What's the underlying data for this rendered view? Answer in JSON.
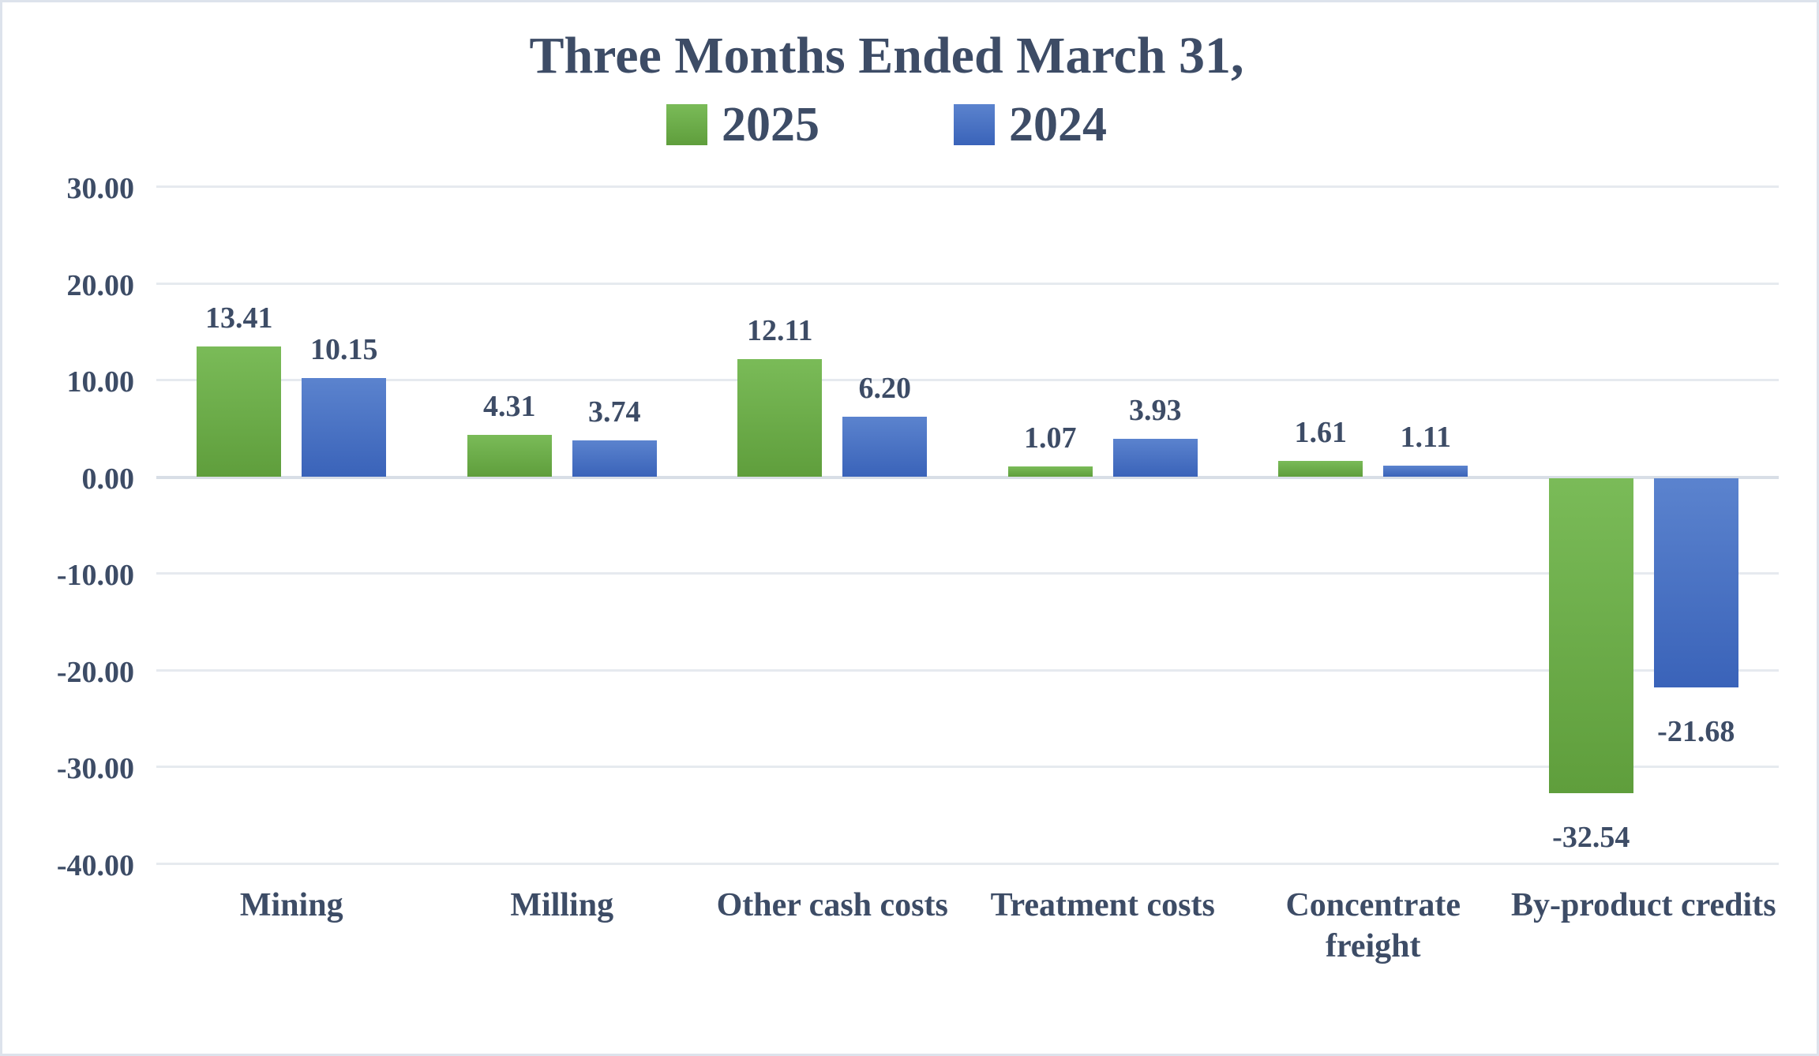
{
  "chart_data": {
    "type": "bar",
    "title": "Three Months Ended March 31,",
    "categories": [
      "Mining",
      "Milling",
      "Other cash costs",
      "Treatment costs",
      "Concentrate freight",
      "By-product credits"
    ],
    "series": [
      {
        "name": "2025",
        "values": [
          13.41,
          4.31,
          12.11,
          1.07,
          1.61,
          -32.54
        ],
        "labels": [
          "13.41",
          "4.31",
          "12.11",
          "1.07",
          "1.61",
          "-32.54"
        ],
        "color": "#6FAD47",
        "color_top": "#7ABB58",
        "color_bottom": "#5F9E3C"
      },
      {
        "name": "2024",
        "values": [
          10.15,
          3.74,
          6.2,
          3.93,
          1.11,
          -21.68
        ],
        "labels": [
          "10.15",
          "3.74",
          "6.20",
          "3.93",
          "1.11",
          "-21.68"
        ],
        "color": "#4472C4",
        "color_top": "#5B83CE",
        "color_bottom": "#3A63B9"
      }
    ],
    "ylim": [
      -40,
      30
    ],
    "ytick_step": 10,
    "yticks": [
      "30.00",
      "20.00",
      "10.00",
      "0.00",
      "-10.00",
      "-20.00",
      "-30.00",
      "-40.00"
    ],
    "grid": "horizontal-gridlines-only",
    "legend_position": "top",
    "xlabel": "",
    "ylabel": "",
    "text_color": "#3D4C66",
    "gridline_color": "#E6EAEF",
    "zeroline_color": "#D8DEE6",
    "background_color": "#FFFFFF",
    "border_color": "#DDE3EC"
  }
}
